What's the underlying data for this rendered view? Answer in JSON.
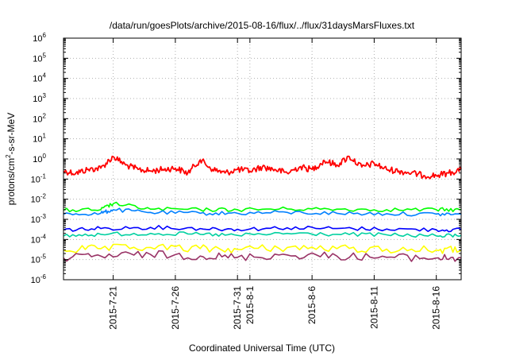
{
  "chart_data": {
    "type": "line",
    "title": "/data/run/goesPlots/archive/2015-08-16/flux/../flux/31daysMarsFluxes.txt",
    "xlabel": "Coordinated Universal Time (UTC)",
    "ylabel": "protons/cm²-s-sr-MeV",
    "ylabel_parts": {
      "base": "protons/cm",
      "sup": "2",
      "rest": "-s-sr-MeV"
    },
    "scale_y": "log",
    "grid": true,
    "legend": "none",
    "x_range": [
      "2015-07-17",
      "2015-08-18"
    ],
    "ylim": [
      1e-06,
      1000000.0
    ],
    "x_ticks": [
      "2015-7-21",
      "2015-7-26",
      "2015-7-31",
      "2015-8-1",
      "2015-8-6",
      "2015-8-11",
      "2015-8-16"
    ],
    "y_ticks": [
      {
        "base": "10",
        "exp": "-6"
      },
      {
        "base": "10",
        "exp": "-5"
      },
      {
        "base": "10",
        "exp": "-4"
      },
      {
        "base": "10",
        "exp": "-3"
      },
      {
        "base": "10",
        "exp": "-2"
      },
      {
        "base": "10",
        "exp": "-1"
      },
      {
        "base": "10",
        "exp": "0"
      },
      {
        "base": "10",
        "exp": "1"
      },
      {
        "base": "10",
        "exp": "2"
      },
      {
        "base": "10",
        "exp": "3"
      },
      {
        "base": "10",
        "exp": "4"
      },
      {
        "base": "10",
        "exp": "5"
      },
      {
        "base": "10",
        "exp": "6"
      }
    ],
    "series": [
      {
        "color": "#ff0000",
        "x": [
          "2015-07-17",
          "2015-07-18",
          "2015-07-19",
          "2015-07-20",
          "2015-07-21",
          "2015-07-22",
          "2015-07-23",
          "2015-07-24",
          "2015-07-25",
          "2015-07-26",
          "2015-07-27",
          "2015-07-28",
          "2015-07-29",
          "2015-07-30",
          "2015-07-31",
          "2015-08-01",
          "2015-08-02",
          "2015-08-03",
          "2015-08-04",
          "2015-08-05",
          "2015-08-06",
          "2015-08-07",
          "2015-08-08",
          "2015-08-09",
          "2015-08-10",
          "2015-08-11",
          "2015-08-12",
          "2015-08-13",
          "2015-08-14",
          "2015-08-15",
          "2015-08-16",
          "2015-08-17",
          "2015-08-18"
        ],
        "y": [
          0.25,
          0.2,
          0.3,
          0.35,
          1.3,
          0.5,
          0.3,
          0.25,
          0.3,
          0.35,
          0.2,
          0.9,
          0.3,
          0.2,
          0.3,
          0.25,
          0.4,
          0.3,
          0.2,
          0.4,
          0.3,
          0.8,
          0.5,
          1.3,
          0.4,
          0.6,
          0.3,
          0.25,
          0.2,
          0.15,
          0.15,
          0.2,
          0.3
        ]
      },
      {
        "color": "#00ff00",
        "x": [
          "2015-07-17",
          "2015-07-20",
          "2015-07-21",
          "2015-07-24",
          "2015-07-28",
          "2015-07-31",
          "2015-08-04",
          "2015-08-08",
          "2015-08-12",
          "2015-08-16",
          "2015-08-18"
        ],
        "y": [
          0.0028,
          0.003,
          0.006,
          0.0032,
          0.003,
          0.003,
          0.0033,
          0.0032,
          0.003,
          0.003,
          0.003
        ]
      },
      {
        "color": "#0080ff",
        "x": [
          "2015-07-17",
          "2015-07-20",
          "2015-07-21",
          "2015-07-24",
          "2015-07-28",
          "2015-07-31",
          "2015-08-04",
          "2015-08-08",
          "2015-08-12",
          "2015-08-16",
          "2015-08-18"
        ],
        "y": [
          0.0018,
          0.002,
          0.003,
          0.0022,
          0.002,
          0.002,
          0.0022,
          0.002,
          0.0019,
          0.0018,
          0.0018
        ]
      },
      {
        "color": "#0000ff",
        "x": [
          "2015-07-17",
          "2015-07-20",
          "2015-07-24",
          "2015-07-28",
          "2015-07-31",
          "2015-08-04",
          "2015-08-08",
          "2015-08-12",
          "2015-08-16",
          "2015-08-18"
        ],
        "y": [
          0.0003,
          0.00035,
          0.0004,
          0.00035,
          0.00032,
          0.00038,
          0.00035,
          0.00033,
          0.0003,
          0.0003
        ]
      },
      {
        "color": "#00d0a0",
        "x": [
          "2015-07-17",
          "2015-07-20",
          "2015-07-24",
          "2015-07-28",
          "2015-07-31",
          "2015-08-04",
          "2015-08-08",
          "2015-08-12",
          "2015-08-16",
          "2015-08-18"
        ],
        "y": [
          0.00015,
          0.00018,
          0.0002,
          0.00018,
          0.00016,
          0.0002,
          0.00018,
          0.00017,
          0.00015,
          0.00016
        ]
      },
      {
        "color": "#ffff00",
        "x": [
          "2015-07-17",
          "2015-07-20",
          "2015-07-24",
          "2015-07-28",
          "2015-07-31",
          "2015-08-04",
          "2015-08-08",
          "2015-08-12",
          "2015-08-16",
          "2015-08-18"
        ],
        "y": [
          3e-05,
          3.5e-05,
          4e-05,
          3.5e-05,
          3.2e-05,
          4e-05,
          3.5e-05,
          3.3e-05,
          3e-05,
          3e-05
        ]
      },
      {
        "color": "#993366",
        "x": [
          "2015-07-17",
          "2015-07-20",
          "2015-07-24",
          "2015-07-28",
          "2015-07-31",
          "2015-08-04",
          "2015-08-08",
          "2015-08-12",
          "2015-08-16",
          "2015-08-18"
        ],
        "y": [
          1.2e-05,
          1.5e-05,
          1.8e-05,
          1.5e-05,
          1.3e-05,
          1.7e-05,
          1.5e-05,
          1.3e-05,
          1.2e-05,
          1.2e-05
        ]
      }
    ]
  }
}
